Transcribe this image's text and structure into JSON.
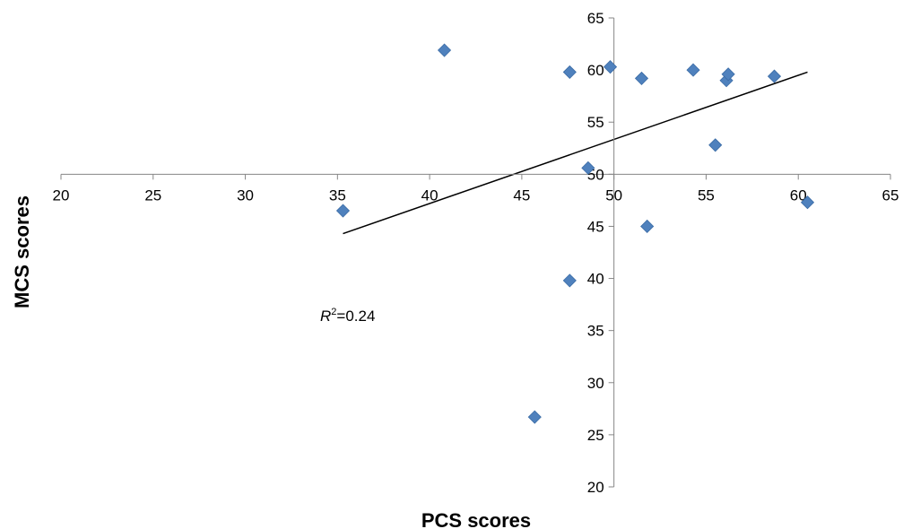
{
  "chart_data": {
    "type": "scatter",
    "xlabel": "PCS scores",
    "ylabel": "MCS scores",
    "xlim": [
      20,
      65
    ],
    "ylim": [
      20,
      65
    ],
    "x_ticks": [
      20,
      25,
      30,
      35,
      40,
      45,
      50,
      55,
      60,
      65
    ],
    "y_ticks": [
      20,
      25,
      30,
      35,
      40,
      45,
      50,
      55,
      60,
      65
    ],
    "x_axis_crosses_y_at": 50,
    "y_axis_crosses_x_at": 50,
    "points": [
      {
        "x": 40.8,
        "y": 61.9
      },
      {
        "x": 47.6,
        "y": 59.8
      },
      {
        "x": 49.8,
        "y": 60.3
      },
      {
        "x": 51.5,
        "y": 59.2
      },
      {
        "x": 54.3,
        "y": 60.0
      },
      {
        "x": 56.1,
        "y": 59.0
      },
      {
        "x": 56.2,
        "y": 59.6
      },
      {
        "x": 58.7,
        "y": 59.4
      },
      {
        "x": 55.5,
        "y": 52.8
      },
      {
        "x": 48.6,
        "y": 50.6
      },
      {
        "x": 35.3,
        "y": 46.5
      },
      {
        "x": 51.8,
        "y": 45.0
      },
      {
        "x": 60.5,
        "y": 47.3
      },
      {
        "x": 47.6,
        "y": 39.8
      },
      {
        "x": 45.7,
        "y": 26.7
      }
    ],
    "trendline": {
      "x": [
        35.3,
        60.5
      ],
      "y": [
        44.3,
        59.8
      ]
    },
    "marker_color": "#4F81BD",
    "annotation": {
      "italic": "R",
      "superscript": "2",
      "text": "=0.24"
    }
  }
}
